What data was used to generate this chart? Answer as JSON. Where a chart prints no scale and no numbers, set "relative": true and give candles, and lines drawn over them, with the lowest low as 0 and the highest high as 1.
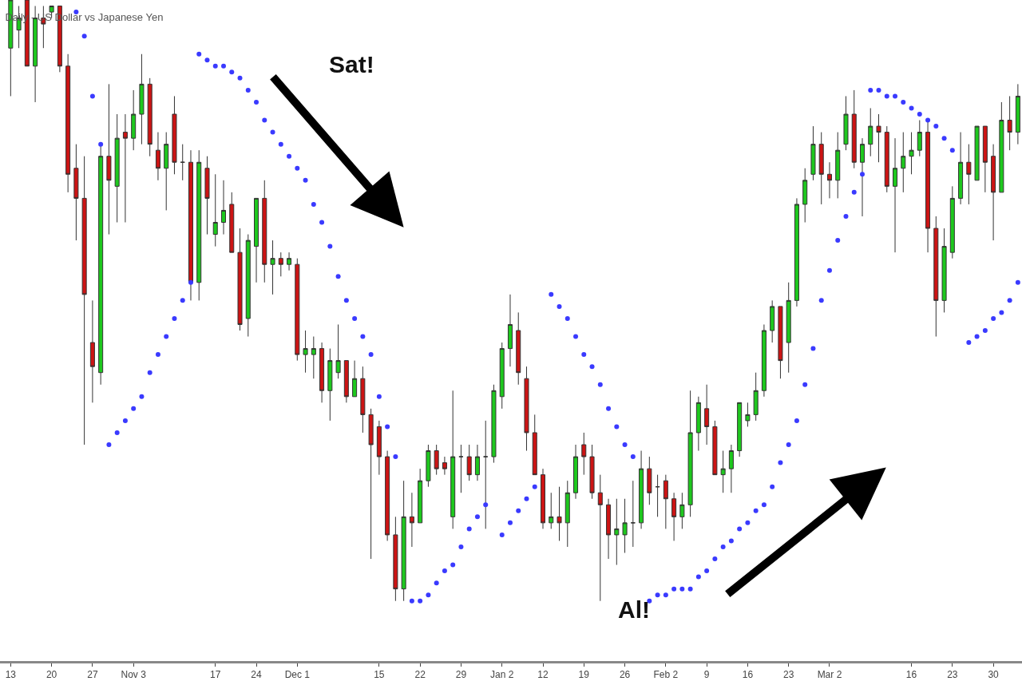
{
  "chart_data": {
    "type": "candlestick",
    "relative": true,
    "title": "Daily - US Dollar vs Japanese Yen",
    "annotations": [
      "Sat!",
      "Al!"
    ],
    "marker": "circle",
    "categories": [
      "13",
      null,
      null,
      null,
      null,
      "20",
      null,
      null,
      null,
      null,
      "27",
      null,
      null,
      null,
      null,
      "Nov 3",
      null,
      null,
      null,
      null,
      null,
      null,
      null,
      null,
      null,
      "17",
      null,
      null,
      null,
      null,
      "24",
      null,
      null,
      null,
      null,
      "Dec 1",
      null,
      null,
      null,
      null,
      null,
      null,
      null,
      null,
      null,
      "15",
      null,
      null,
      null,
      null,
      "22",
      null,
      null,
      null,
      null,
      "29",
      null,
      null,
      null,
      null,
      "Jan 2",
      null,
      null,
      null,
      null,
      "12",
      null,
      null,
      null,
      null,
      "19",
      null,
      null,
      null,
      null,
      "26",
      null,
      null,
      null,
      null,
      "Feb 2",
      null,
      null,
      null,
      null,
      "9",
      null,
      null,
      null,
      null,
      "16",
      null,
      null,
      null,
      null,
      "23",
      null,
      null,
      null,
      null,
      "Mar 2",
      null,
      null,
      null,
      null,
      null,
      null,
      null,
      null,
      null,
      "16",
      null,
      null,
      null,
      null,
      "23",
      null,
      null,
      null,
      null,
      "30",
      null,
      null,
      null
    ],
    "ohlc": [
      [
        0.92,
        1,
        0.84,
        1
      ],
      [
        0.95,
        0.99,
        0.92,
        0.97
      ],
      [
        1,
        1,
        0.89,
        0.89
      ],
      [
        0.89,
        0.99,
        0.83,
        0.97
      ],
      [
        0.97,
        0.99,
        0.92,
        0.96
      ],
      [
        0.98,
        0.99,
        0.97,
        0.99
      ],
      [
        0.99,
        0.99,
        0.88,
        0.89
      ],
      [
        0.89,
        0.91,
        0.68,
        0.71
      ],
      [
        0.72,
        0.76,
        0.6,
        0.67
      ],
      [
        0.67,
        0.74,
        0.26,
        0.51
      ],
      [
        0.43,
        0.5,
        0.33,
        0.39
      ],
      [
        0.38,
        0.76,
        0.36,
        0.74
      ],
      [
        0.74,
        0.86,
        0.61,
        0.7
      ],
      [
        0.69,
        0.81,
        0.63,
        0.77
      ],
      [
        0.78,
        0.81,
        0.63,
        0.77
      ],
      [
        0.77,
        0.85,
        0.75,
        0.81
      ],
      [
        0.81,
        0.91,
        0.76,
        0.86
      ],
      [
        0.86,
        0.87,
        0.74,
        0.76
      ],
      [
        0.75,
        0.78,
        0.7,
        0.72
      ],
      [
        0.72,
        0.78,
        0.65,
        0.76
      ],
      [
        0.81,
        0.84,
        0.71,
        0.73
      ],
      [
        0.73,
        0.76,
        0.7,
        0.73
      ],
      [
        0.73,
        0.75,
        0.5,
        0.53
      ],
      [
        0.53,
        0.75,
        0.5,
        0.73
      ],
      [
        0.72,
        0.74,
        0.61,
        0.67
      ],
      [
        0.61,
        0.71,
        0.59,
        0.63
      ],
      [
        0.63,
        0.7,
        0.61,
        0.65
      ],
      [
        0.66,
        0.68,
        0.58,
        0.58
      ],
      [
        0.58,
        0.62,
        0.45,
        0.46
      ],
      [
        0.47,
        0.61,
        0.44,
        0.6
      ],
      [
        0.59,
        0.67,
        0.53,
        0.67
      ],
      [
        0.67,
        0.7,
        0.53,
        0.56
      ],
      [
        0.56,
        0.6,
        0.51,
        0.57
      ],
      [
        0.57,
        0.58,
        0.54,
        0.56
      ],
      [
        0.56,
        0.58,
        0.55,
        0.57
      ],
      [
        0.56,
        0.57,
        0.4,
        0.41
      ],
      [
        0.41,
        0.45,
        0.38,
        0.42
      ],
      [
        0.41,
        0.44,
        0.37,
        0.42
      ],
      [
        0.42,
        0.43,
        0.33,
        0.35
      ],
      [
        0.35,
        0.42,
        0.3,
        0.4
      ],
      [
        0.38,
        0.46,
        0.37,
        0.4
      ],
      [
        0.4,
        0.4,
        0.33,
        0.34
      ],
      [
        0.34,
        0.4,
        0.34,
        0.37
      ],
      [
        0.37,
        0.39,
        0.28,
        0.31
      ],
      [
        0.31,
        0.32,
        0.07,
        0.26
      ],
      [
        0.29,
        0.3,
        0.21,
        0.24
      ],
      [
        0.24,
        0.25,
        0.1,
        0.11
      ],
      [
        0.11,
        0.14,
        0,
        0.02
      ],
      [
        0.02,
        0.2,
        0,
        0.14
      ],
      [
        0.14,
        0.18,
        0.09,
        0.13
      ],
      [
        0.13,
        0.22,
        0.13,
        0.2
      ],
      [
        0.2,
        0.26,
        0.19,
        0.25
      ],
      [
        0.25,
        0.26,
        0.21,
        0.22
      ],
      [
        0.23,
        0.24,
        0.21,
        0.22
      ],
      [
        0.14,
        0.35,
        0.12,
        0.24
      ],
      [
        0.24,
        0.26,
        0.18,
        0.24
      ],
      [
        0.24,
        0.26,
        0.2,
        0.21
      ],
      [
        0.21,
        0.26,
        0.2,
        0.24
      ],
      [
        0.24,
        0.3,
        0.12,
        0.24
      ],
      [
        0.24,
        0.36,
        0.23,
        0.35
      ],
      [
        0.34,
        0.43,
        0.32,
        0.42
      ],
      [
        0.42,
        0.51,
        0.39,
        0.46
      ],
      [
        0.45,
        0.48,
        0.36,
        0.38
      ],
      [
        0.37,
        0.39,
        0.25,
        0.28
      ],
      [
        0.28,
        0.31,
        0.21,
        0.21
      ],
      [
        0.21,
        0.22,
        0.12,
        0.13
      ],
      [
        0.13,
        0.18,
        0.12,
        0.14
      ],
      [
        0.14,
        0.19,
        0.1,
        0.13
      ],
      [
        0.13,
        0.2,
        0.09,
        0.18
      ],
      [
        0.18,
        0.26,
        0.17,
        0.24
      ],
      [
        0.26,
        0.28,
        0.21,
        0.24
      ],
      [
        0.24,
        0.26,
        0.17,
        0.18
      ],
      [
        0.18,
        0.21,
        0,
        0.16
      ],
      [
        0.16,
        0.17,
        0.07,
        0.11
      ],
      [
        0.11,
        0.17,
        0.06,
        0.12
      ],
      [
        0.11,
        0.17,
        0.08,
        0.13
      ],
      [
        0.13,
        0.2,
        0.09,
        0.13
      ],
      [
        0.13,
        0.25,
        0.12,
        0.22
      ],
      [
        0.22,
        0.24,
        0.16,
        0.18
      ],
      [
        0.19,
        0.21,
        0.14,
        0.19
      ],
      [
        0.2,
        0.21,
        0.12,
        0.17
      ],
      [
        0.17,
        0.18,
        0.1,
        0.14
      ],
      [
        0.14,
        0.18,
        0.12,
        0.16
      ],
      [
        0.16,
        0.35,
        0.14,
        0.28
      ],
      [
        0.28,
        0.34,
        0.25,
        0.33
      ],
      [
        0.32,
        0.36,
        0.26,
        0.29
      ],
      [
        0.29,
        0.3,
        0.21,
        0.21
      ],
      [
        0.21,
        0.25,
        0.18,
        0.22
      ],
      [
        0.22,
        0.26,
        0.18,
        0.25
      ],
      [
        0.25,
        0.33,
        0.24,
        0.33
      ],
      [
        0.3,
        0.33,
        0.29,
        0.31
      ],
      [
        0.31,
        0.38,
        0.3,
        0.35
      ],
      [
        0.35,
        0.46,
        0.34,
        0.45
      ],
      [
        0.45,
        0.5,
        0.43,
        0.49
      ],
      [
        0.49,
        0.49,
        0.37,
        0.4
      ],
      [
        0.43,
        0.53,
        0.38,
        0.5
      ],
      [
        0.5,
        0.67,
        0.49,
        0.66
      ],
      [
        0.66,
        0.72,
        0.63,
        0.7
      ],
      [
        0.71,
        0.79,
        0.7,
        0.76
      ],
      [
        0.76,
        0.78,
        0.66,
        0.71
      ],
      [
        0.71,
        0.73,
        0.67,
        0.7
      ],
      [
        0.7,
        0.78,
        0.67,
        0.75
      ],
      [
        0.76,
        0.84,
        0.75,
        0.81
      ],
      [
        0.81,
        0.85,
        0.72,
        0.73
      ],
      [
        0.73,
        0.77,
        0.64,
        0.76
      ],
      [
        0.76,
        0.82,
        0.74,
        0.79
      ],
      [
        0.79,
        0.81,
        0.73,
        0.78
      ],
      [
        0.78,
        0.79,
        0.68,
        0.69
      ],
      [
        0.69,
        0.77,
        0.58,
        0.72
      ],
      [
        0.72,
        0.78,
        0.68,
        0.74
      ],
      [
        0.74,
        0.78,
        0.71,
        0.75
      ],
      [
        0.75,
        0.8,
        0.74,
        0.78
      ],
      [
        0.78,
        0.8,
        0.58,
        0.62
      ],
      [
        0.62,
        0.64,
        0.44,
        0.5
      ],
      [
        0.5,
        0.62,
        0.48,
        0.59
      ],
      [
        0.58,
        0.69,
        0.57,
        0.67
      ],
      [
        0.67,
        0.78,
        0.66,
        0.73
      ],
      [
        0.73,
        0.76,
        0.66,
        0.71
      ],
      [
        0.7,
        0.79,
        0.7,
        0.79
      ],
      [
        0.79,
        0.79,
        0.68,
        0.73
      ],
      [
        0.74,
        0.76,
        0.6,
        0.68
      ],
      [
        0.68,
        0.83,
        0.68,
        0.8
      ],
      [
        0.8,
        0.84,
        0.75,
        0.78
      ],
      [
        0.78,
        0.86,
        0.76,
        0.84
      ]
    ],
    "series": [
      {
        "type": "scatter",
        "color": "#3a3aff",
        "values": [
          null,
          null,
          null,
          null,
          null,
          null,
          null,
          null,
          0.98,
          0.94,
          0.84,
          0.76,
          0.26,
          0.28,
          0.3,
          0.32,
          0.34,
          0.38,
          0.41,
          0.44,
          0.47,
          0.5,
          0.53,
          0.91,
          0.9,
          0.89,
          0.89,
          0.88,
          0.87,
          0.85,
          0.83,
          0.8,
          0.78,
          0.76,
          0.74,
          0.72,
          0.7,
          0.66,
          0.63,
          0.59,
          0.54,
          0.5,
          0.47,
          0.44,
          0.41,
          0.34,
          0.29,
          0.24,
          null,
          0,
          0,
          0.01,
          0.03,
          0.05,
          0.06,
          0.09,
          0.12,
          0.14,
          0.16,
          null,
          0.11,
          0.13,
          0.15,
          0.17,
          0.19,
          null,
          0.51,
          0.49,
          0.47,
          0.44,
          0.41,
          0.39,
          0.36,
          0.32,
          0.29,
          0.26,
          0.24,
          null,
          0,
          0.01,
          0.01,
          0.02,
          0.02,
          0.02,
          0.04,
          0.05,
          0.07,
          0.09,
          0.1,
          0.12,
          0.13,
          0.15,
          0.16,
          0.19,
          0.23,
          0.26,
          0.3,
          0.36,
          0.42,
          0.5,
          0.55,
          0.6,
          0.64,
          0.68,
          0.71,
          0.85,
          0.85,
          0.84,
          0.84,
          0.83,
          0.82,
          0.81,
          0.8,
          0.79,
          0.77,
          0.75,
          null,
          0.43,
          0.44,
          0.45,
          0.47,
          0.48,
          0.5,
          0.53
        ]
      }
    ]
  }
}
